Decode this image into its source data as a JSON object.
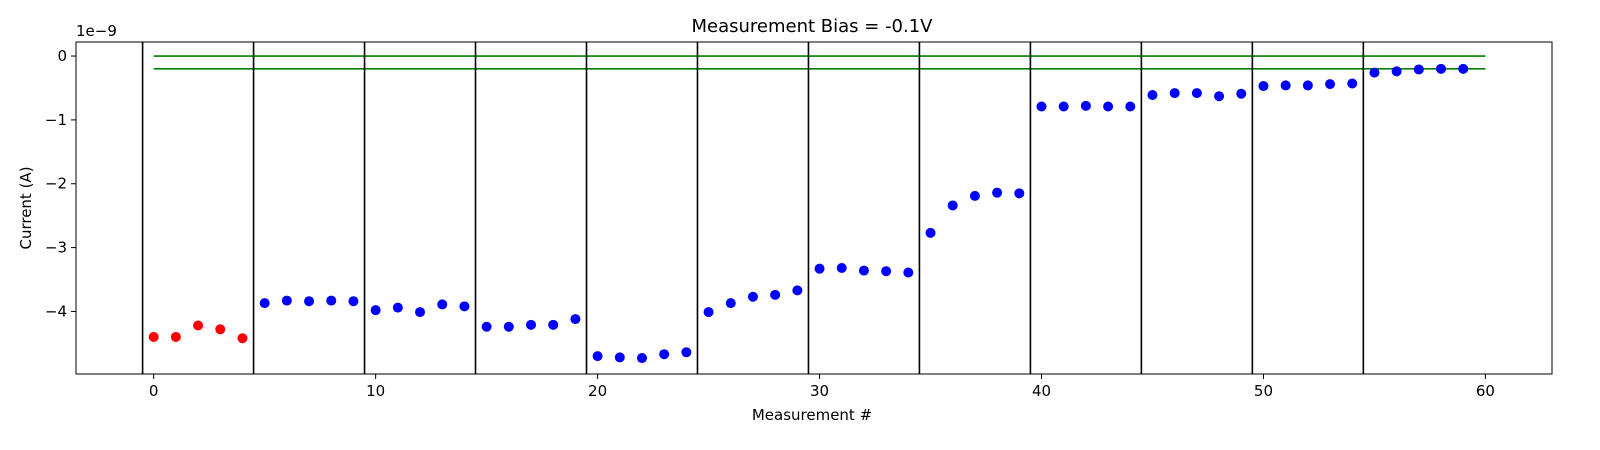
{
  "chart_data": {
    "type": "scatter",
    "title": "Measurement Bias = -0.1V",
    "xlabel": "Measurement #",
    "ylabel": "Current (A)",
    "y_offset_label": "1e−9",
    "xlim": [
      -3.5,
      63.0
    ],
    "ylim": [
      -4.98,
      0.22
    ],
    "x_ticks": [
      0,
      10,
      20,
      30,
      40,
      50,
      60
    ],
    "x_tick_labels": [
      "0",
      "10",
      "20",
      "30",
      "40",
      "50",
      "60"
    ],
    "y_ticks": [
      0,
      -1,
      -2,
      -3,
      -4
    ],
    "y_tick_labels": [
      "0",
      "−1",
      "−2",
      "−3",
      "−4"
    ],
    "grid": false,
    "series": [
      {
        "color": "#ff0000",
        "x": [
          0,
          1,
          2,
          3,
          4
        ],
        "y": [
          -4.4,
          -4.4,
          -4.22,
          -4.28,
          -4.42
        ]
      },
      {
        "color": "#0000ff",
        "x": [
          5,
          6,
          7,
          8,
          9,
          10,
          11,
          12,
          13,
          14,
          15,
          16,
          17,
          18,
          19,
          20,
          21,
          22,
          23,
          24,
          25,
          26,
          27,
          28,
          29,
          30,
          31,
          32,
          33,
          34,
          35,
          36,
          37,
          38,
          39,
          40,
          41,
          42,
          43,
          44,
          45,
          46,
          47,
          48,
          49,
          50,
          51,
          52,
          53,
          54,
          55,
          56,
          57,
          58,
          59
        ],
        "y": [
          -3.87,
          -3.83,
          -3.84,
          -3.83,
          -3.84,
          -3.98,
          -3.94,
          -4.01,
          -3.89,
          -3.92,
          -4.24,
          -4.24,
          -4.21,
          -4.21,
          -4.12,
          -4.7,
          -4.72,
          -4.73,
          -4.67,
          -4.64,
          -4.01,
          -3.87,
          -3.77,
          -3.74,
          -3.67,
          -3.33,
          -3.32,
          -3.36,
          -3.37,
          -3.39,
          -2.77,
          -2.34,
          -2.19,
          -2.14,
          -2.15,
          -0.79,
          -0.79,
          -0.78,
          -0.79,
          -0.79,
          -0.61,
          -0.58,
          -0.58,
          -0.63,
          -0.59,
          -0.47,
          -0.46,
          -0.46,
          -0.44,
          -0.43,
          -0.26,
          -0.24,
          -0.21,
          -0.2,
          -0.2
        ]
      }
    ],
    "vertical_lines": {
      "color": "#000000",
      "x": [
        -0.5,
        4.5,
        9.5,
        14.5,
        19.5,
        24.5,
        29.5,
        34.5,
        39.5,
        44.5,
        49.5,
        54.5
      ]
    },
    "horizontal_lines": {
      "color": "#008000",
      "y": [
        0.0,
        -0.2
      ],
      "x_range": [
        0,
        60
      ]
    }
  }
}
